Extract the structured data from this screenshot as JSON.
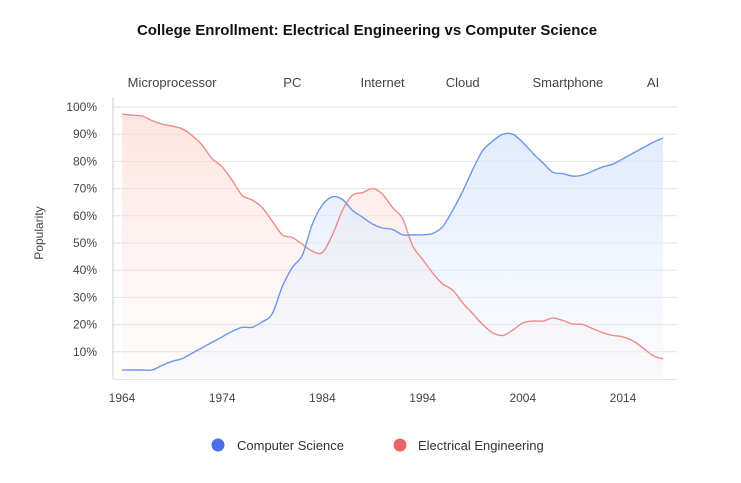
{
  "chart_data": {
    "type": "area",
    "title": "College Enrollment: Electrical Engineering vs Computer Science",
    "xlabel": "",
    "ylabel": "Popularity",
    "xlim": [
      1964,
      2018
    ],
    "ylim": [
      0,
      100
    ],
    "x_ticks": [
      1964,
      1974,
      1984,
      1994,
      2004,
      2014
    ],
    "y_ticks": [
      "10%",
      "20%",
      "30%",
      "40%",
      "50%",
      "60%",
      "70%",
      "80%",
      "90%",
      "100%"
    ],
    "y_tick_values": [
      10,
      20,
      30,
      40,
      50,
      60,
      70,
      80,
      90,
      100
    ],
    "grid": "horizontal",
    "legend_position": "bottom",
    "annotations": [
      {
        "label": "Microprocessor",
        "year": 1969
      },
      {
        "label": "PC",
        "year": 1981
      },
      {
        "label": "Internet",
        "year": 1990
      },
      {
        "label": "Cloud",
        "year": 1998
      },
      {
        "label": "Smartphone",
        "year": 2008.5
      },
      {
        "label": "AI",
        "year": 2017
      }
    ],
    "x": [
      1964,
      1965,
      1966,
      1967,
      1968,
      1969,
      1970,
      1971,
      1972,
      1973,
      1974,
      1975,
      1976,
      1977,
      1978,
      1979,
      1980,
      1981,
      1982,
      1983,
      1984,
      1985,
      1986,
      1987,
      1988,
      1989,
      1990,
      1991,
      1992,
      1993,
      1994,
      1995,
      1996,
      1997,
      1998,
      1999,
      2000,
      2001,
      2002,
      2003,
      2004,
      2005,
      2006,
      2007,
      2008,
      2009,
      2010,
      2011,
      2012,
      2013,
      2014,
      2015,
      2016,
      2017,
      2018
    ],
    "series": [
      {
        "name": "Computer Science",
        "color": "#4a6ee8",
        "line_color": "#6b97ee",
        "values": [
          3.3,
          3.3,
          3.3,
          3.3,
          5,
          6.5,
          7.5,
          9.5,
          11.5,
          13.5,
          15.5,
          17.5,
          19,
          19,
          21,
          24,
          34,
          41,
          45.6,
          57,
          64,
          67,
          66,
          62,
          59.5,
          57,
          55.5,
          55,
          53,
          53,
          53,
          53.5,
          56,
          62,
          69,
          77,
          84,
          87.5,
          90,
          90,
          87,
          83,
          79.5,
          76,
          75.5,
          74.6,
          75,
          76.5,
          78,
          79,
          81,
          83,
          85,
          87,
          88.6
        ]
      },
      {
        "name": "Electrical Engineering",
        "color": "#e86466",
        "line_color": "#f28a8a",
        "values": [
          97.4,
          97,
          96.7,
          95,
          93.7,
          93,
          92,
          89.5,
          86,
          81,
          78,
          73,
          67.5,
          65.8,
          63,
          58,
          53,
          52,
          49.5,
          47,
          46.5,
          53,
          62,
          67.6,
          68.5,
          70,
          68,
          63,
          59,
          49,
          44,
          39,
          35,
          32.7,
          28,
          24,
          20,
          17,
          16,
          18,
          20.6,
          21.3,
          21.3,
          22.4,
          21.5,
          20.2,
          20,
          18.5,
          17,
          16,
          15.5,
          14,
          11.4,
          8.6,
          7.4
        ]
      }
    ]
  }
}
